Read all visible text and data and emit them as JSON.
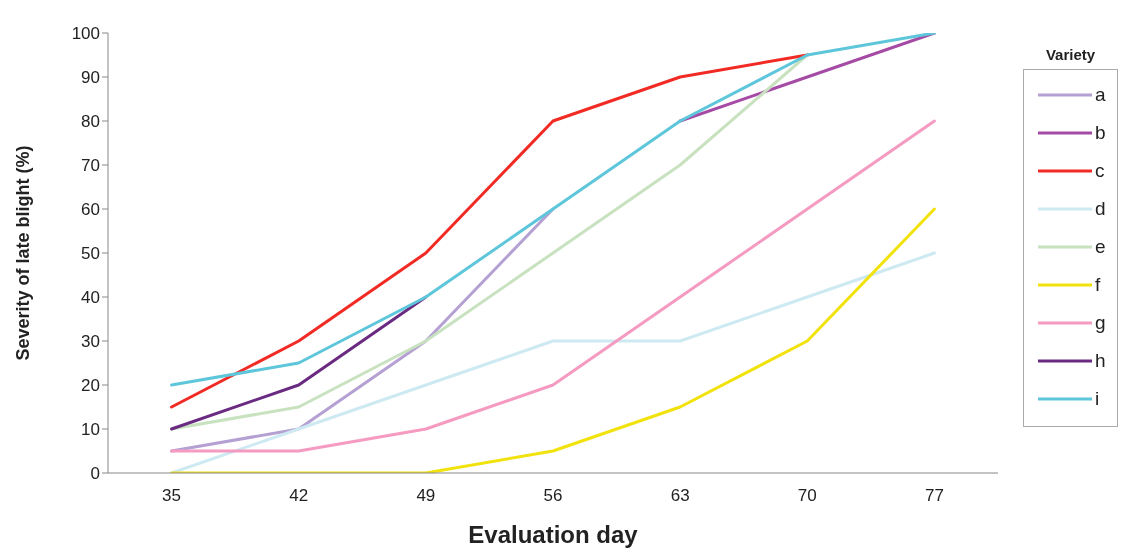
{
  "chart_data": {
    "type": "line",
    "xlabel": "Evaluation day",
    "ylabel": "Severity of late blight (%)",
    "legend_title": "Variety",
    "categories": [
      "35",
      "42",
      "49",
      "56",
      "63",
      "70",
      "77"
    ],
    "series": [
      {
        "name": "a",
        "color": "#b4a0d2",
        "values": [
          5,
          10,
          30,
          60,
          null,
          null,
          null
        ]
      },
      {
        "name": "b",
        "color": "#a54aa5",
        "values": [
          null,
          null,
          null,
          null,
          80,
          90,
          100
        ]
      },
      {
        "name": "c",
        "color": "#f22a24",
        "values": [
          15,
          30,
          50,
          80,
          90,
          95,
          null
        ]
      },
      {
        "name": "d",
        "color": "#cde9f2",
        "values": [
          0,
          10,
          20,
          30,
          30,
          40,
          50
        ]
      },
      {
        "name": "e",
        "color": "#c8e2c0",
        "values": [
          10,
          15,
          30,
          50,
          70,
          95,
          null
        ]
      },
      {
        "name": "f",
        "color": "#f2e20c",
        "values": [
          0,
          0,
          0,
          5,
          15,
          30,
          60
        ]
      },
      {
        "name": "g",
        "color": "#f59ac0",
        "values": [
          5,
          5,
          10,
          20,
          40,
          60,
          80
        ]
      },
      {
        "name": "h",
        "color": "#6a2a82",
        "values": [
          10,
          20,
          40,
          null,
          null,
          null,
          null
        ]
      },
      {
        "name": "i",
        "color": "#5ec6da",
        "values": [
          20,
          25,
          40,
          60,
          80,
          95,
          100
        ]
      }
    ],
    "ylim": [
      0,
      100
    ],
    "yticks": [
      0,
      10,
      20,
      30,
      40,
      50,
      60,
      70,
      80,
      90,
      100
    ],
    "grid": false,
    "legend": "right",
    "marker": "none",
    "line_style": "solid"
  }
}
